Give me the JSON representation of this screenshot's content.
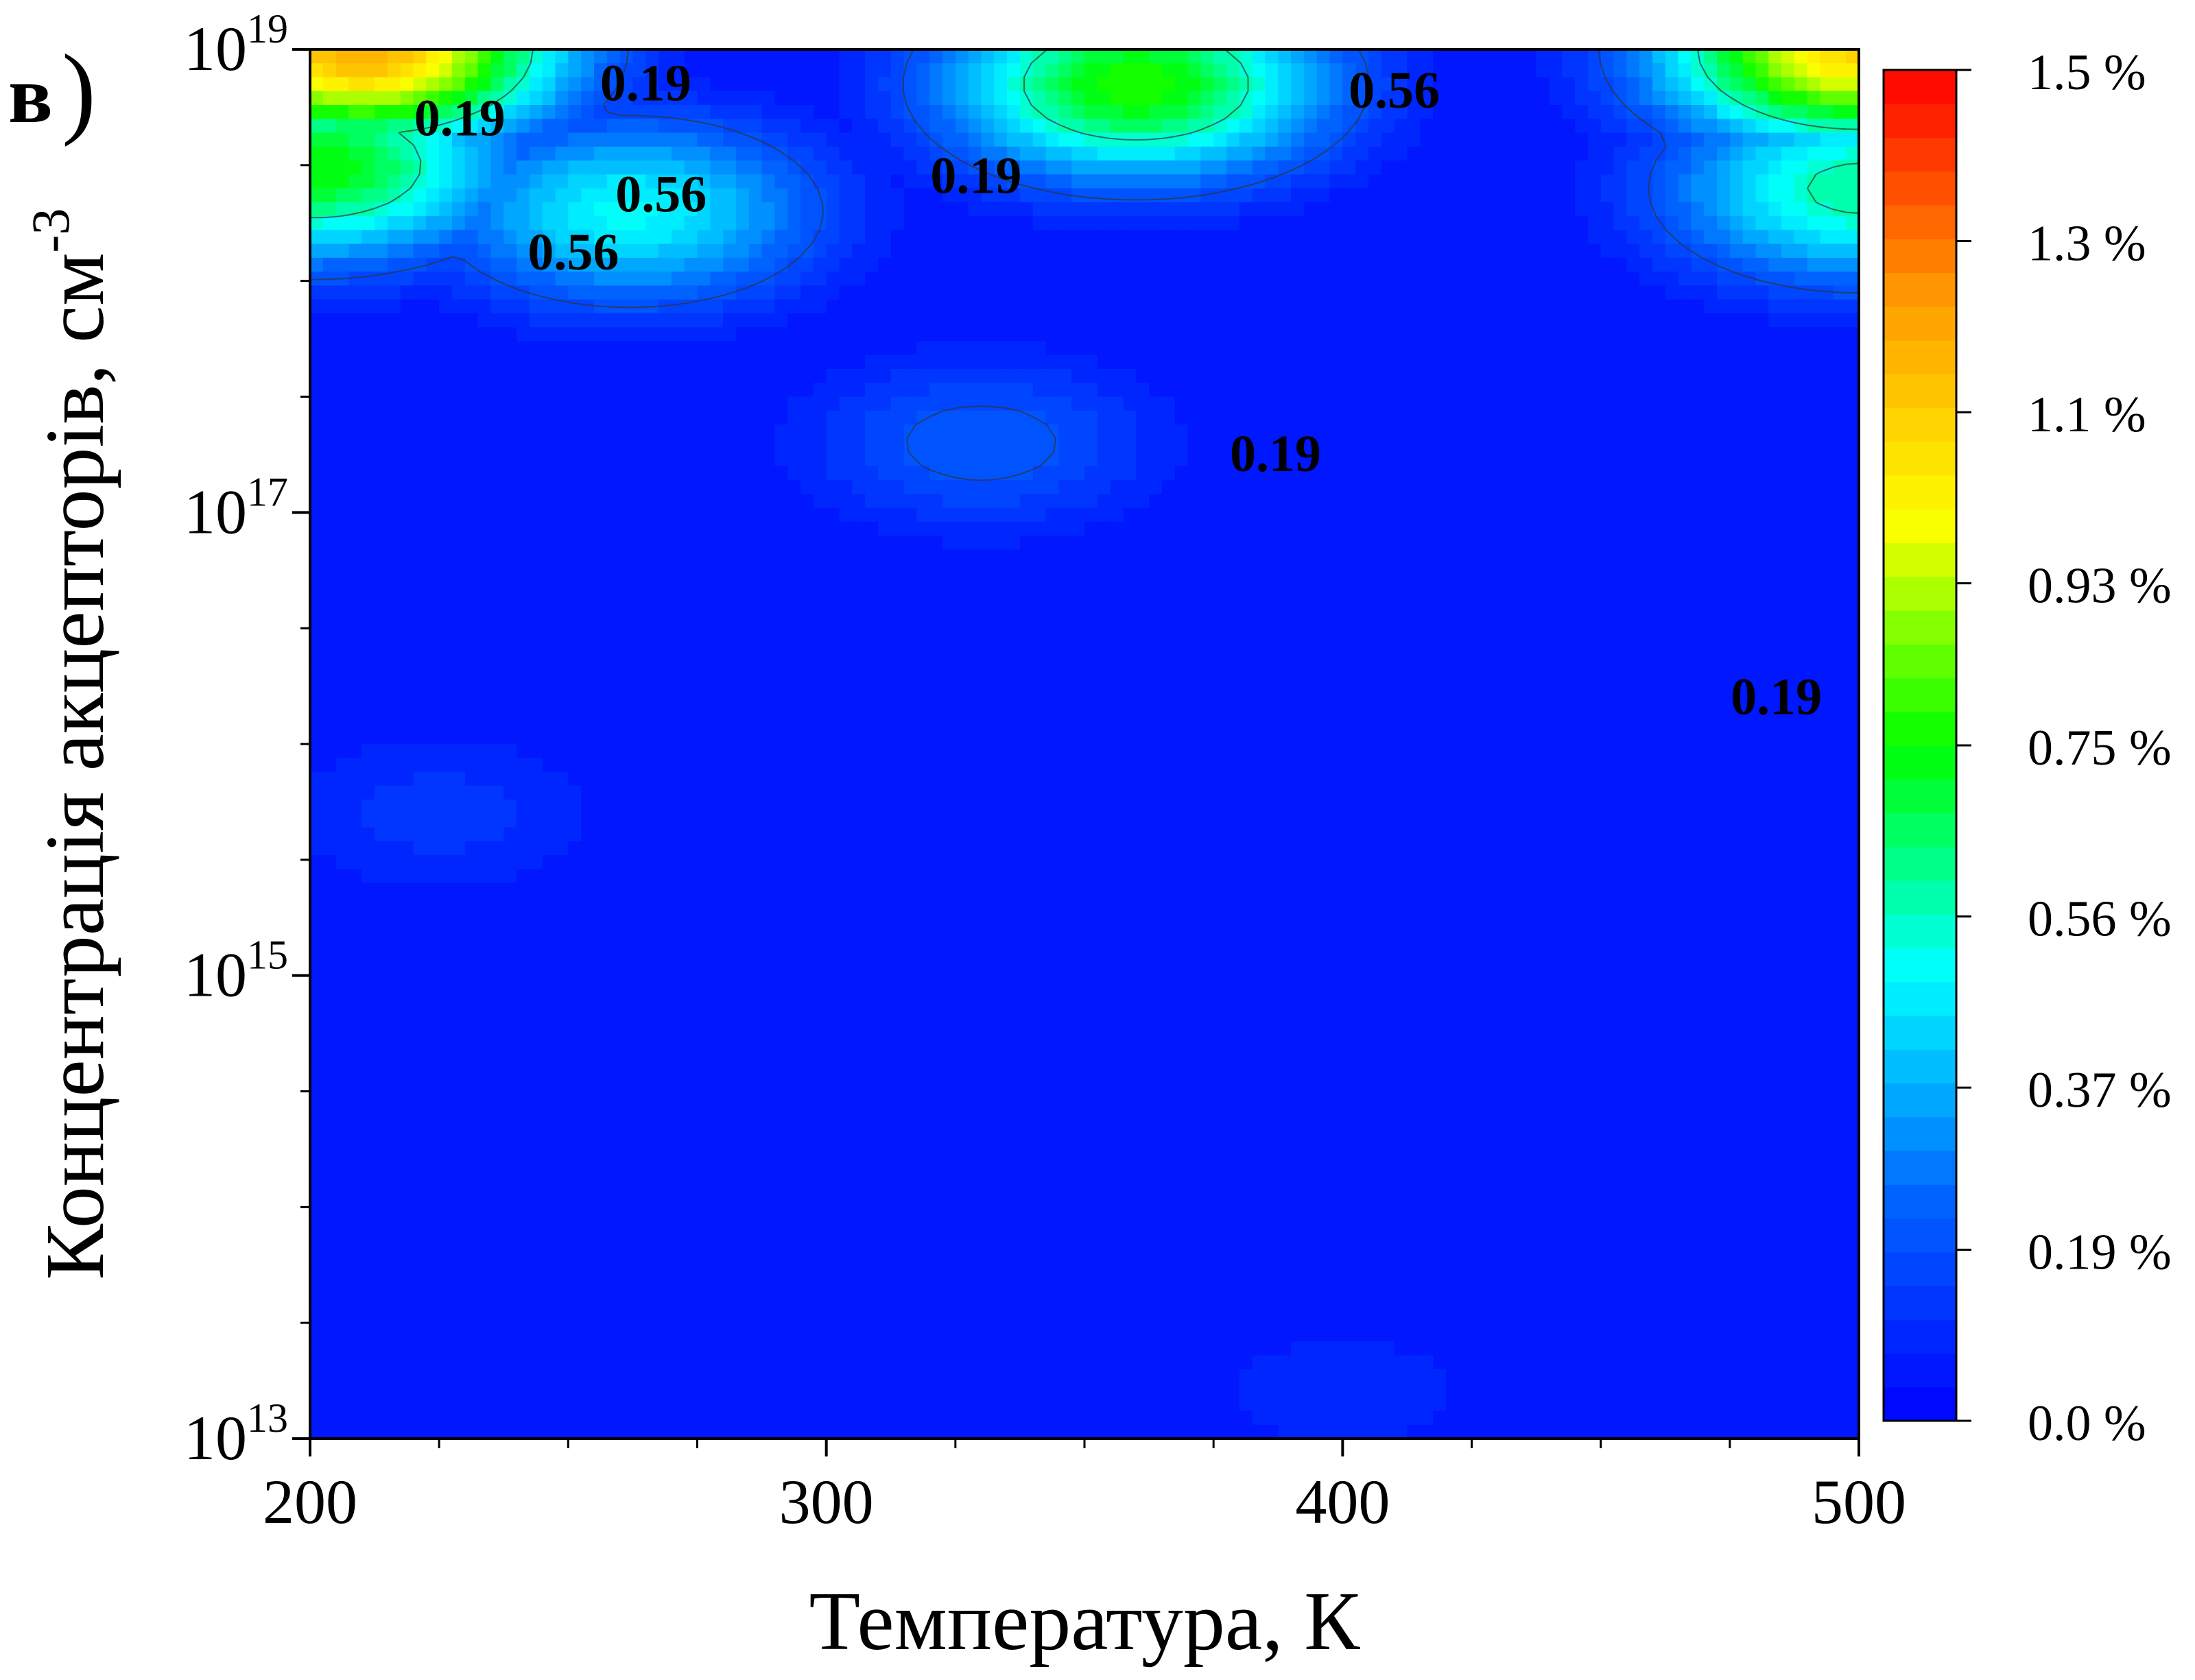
{
  "panel_label": "в",
  "panel_paren": ")",
  "chart_data": {
    "type": "heatmap",
    "subtype": "filled-contour",
    "xlabel": "Температура, К",
    "ylabel": "Концентрація акцепторів, см",
    "ylabel_superscript": "-3",
    "x_ticks": [
      200,
      300,
      400,
      500
    ],
    "x_tick_labels": [
      "200",
      "300",
      "400",
      "500"
    ],
    "xlim": [
      200,
      500
    ],
    "y_scale": "log",
    "ylim": [
      10000000000000.0,
      1e+19
    ],
    "y_ticks": [
      {
        "base": "10",
        "exp": "13"
      },
      {
        "base": "10",
        "exp": "15"
      },
      {
        "base": "10",
        "exp": "17"
      },
      {
        "base": "10",
        "exp": "19"
      }
    ],
    "colorbar": {
      "min": 0.0,
      "max": 1.5,
      "tick_labels": [
        "1.5 %",
        "1.3 %",
        "1.1 %",
        "0.93 %",
        "0.75 %",
        "0.56 %",
        "0.37 %",
        "0.19 %",
        "0.0 %"
      ],
      "tick_values": [
        1.5,
        1.31,
        1.12,
        0.93,
        0.75,
        0.56,
        0.37,
        0.19,
        0.0
      ],
      "colors": [
        "#0000ff",
        "#0066ff",
        "#00ffff",
        "#00ff00",
        "#ffff00",
        "#ff9900",
        "#ff0000"
      ]
    },
    "contour_levels": [
      0.19,
      0.56
    ],
    "contour_labels": [
      {
        "text": "0.19",
        "T": 229,
        "logN": 18.7
      },
      {
        "text": "0.19",
        "T": 265,
        "logN": 18.85
      },
      {
        "text": "0.19",
        "T": 329,
        "logN": 18.45
      },
      {
        "text": "0.19",
        "T": 387,
        "logN": 17.25
      },
      {
        "text": "0.19",
        "T": 484,
        "logN": 16.2
      },
      {
        "text": "0.56",
        "T": 268,
        "logN": 18.37
      },
      {
        "text": "0.56",
        "T": 251,
        "logN": 18.12
      },
      {
        "text": "0.56",
        "T": 410,
        "logN": 18.82
      }
    ],
    "hotspots": [
      {
        "T": 360,
        "logN": 18.85,
        "value": 0.78
      },
      {
        "T": 262,
        "logN": 18.3,
        "value": 0.5
      },
      {
        "T": 201,
        "logN": 18.5,
        "value": 0.75
      },
      {
        "T": 210,
        "logN": 19.0,
        "value": 1.2
      },
      {
        "T": 500,
        "logN": 19.0,
        "value": 1.1
      },
      {
        "T": 500,
        "logN": 18.4,
        "value": 0.6
      },
      {
        "T": 330,
        "logN": 17.3,
        "value": 0.22
      },
      {
        "T": 225,
        "logN": 15.7,
        "value": 0.13
      },
      {
        "T": 400,
        "logN": 13.2,
        "value": 0.1
      }
    ]
  }
}
